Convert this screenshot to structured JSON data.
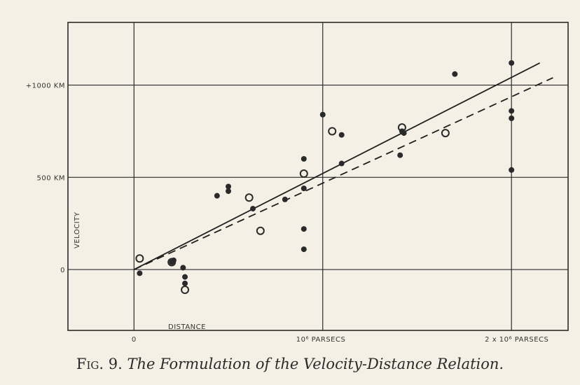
{
  "chart_data": {
    "type": "scatter",
    "caption_prefix": "Fig. 9.",
    "title": "The Formulation of the Velocity-Distance Relation.",
    "xlabel": "DISTANCE",
    "ylabel": "VELOCITY",
    "xlim": [
      -0.35,
      2.3
    ],
    "ylim": [
      -330,
      1340
    ],
    "y_ticks": [
      {
        "value": 0,
        "label": "0"
      },
      {
        "value": 500,
        "label": "500 KM"
      },
      {
        "value": 1000,
        "label": "+1000 KM"
      }
    ],
    "x_ticks": [
      {
        "value": 0,
        "label": "0"
      },
      {
        "value": 1.0,
        "label": "10⁶ PARSECS"
      },
      {
        "value": 2.0,
        "label": "2 x 10⁶ PARSECS"
      }
    ],
    "grid": true,
    "fit_lines": [
      {
        "style": "solid",
        "x": [
          0.0,
          2.15
        ],
        "y": [
          0,
          1120
        ]
      },
      {
        "style": "dashed",
        "x": [
          0.0,
          2.22
        ],
        "y": [
          0,
          1040
        ]
      }
    ],
    "series": [
      {
        "marker": "filled",
        "points": [
          [
            0.03,
            -20
          ],
          [
            0.2,
            40
          ],
          [
            0.21,
            50
          ],
          [
            0.26,
            10
          ],
          [
            0.27,
            -40
          ],
          [
            0.27,
            -75
          ],
          [
            0.44,
            400
          ],
          [
            0.5,
            450
          ],
          [
            0.5,
            425
          ],
          [
            0.63,
            330
          ],
          [
            0.8,
            380
          ],
          [
            0.9,
            600
          ],
          [
            0.9,
            440
          ],
          [
            0.9,
            220
          ],
          [
            0.9,
            110
          ],
          [
            1.0,
            840
          ],
          [
            1.1,
            730
          ],
          [
            1.1,
            575
          ],
          [
            1.41,
            620
          ],
          [
            1.42,
            750
          ],
          [
            1.43,
            740
          ],
          [
            1.7,
            1060
          ],
          [
            2.0,
            1120
          ],
          [
            2.0,
            860
          ],
          [
            2.0,
            820
          ],
          [
            2.0,
            540
          ]
        ]
      },
      {
        "marker": "open",
        "points": [
          [
            0.03,
            60
          ],
          [
            0.2,
            40
          ],
          [
            0.27,
            -110
          ],
          [
            0.61,
            390
          ],
          [
            0.67,
            210
          ],
          [
            0.9,
            520
          ],
          [
            1.05,
            750
          ],
          [
            1.42,
            770
          ],
          [
            1.65,
            740
          ]
        ]
      }
    ]
  }
}
